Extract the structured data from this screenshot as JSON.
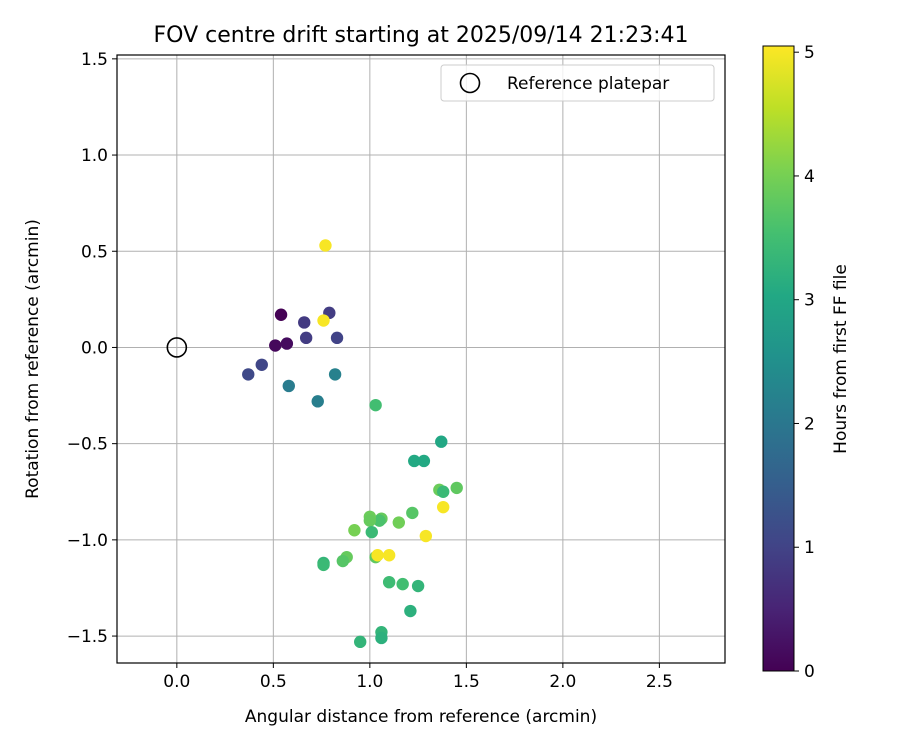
{
  "chart_data": {
    "type": "scatter",
    "title": "FOV centre drift starting at 2025/09/14 21:23:41",
    "xlabel": "Angular distance from reference (arcmin)",
    "ylabel": "Rotation from reference (arcmin)",
    "xlim": [
      -0.31,
      2.84
    ],
    "ylim": [
      -1.64,
      1.52
    ],
    "xticks": [
      0.0,
      0.5,
      1.0,
      1.5,
      2.0,
      2.5
    ],
    "xtick_labels": [
      "0.0",
      "0.5",
      "1.0",
      "1.5",
      "2.0",
      "2.5"
    ],
    "yticks": [
      -1.5,
      -1.0,
      -0.5,
      0.0,
      0.5,
      1.0,
      1.5
    ],
    "ytick_labels": [
      "−1.5",
      "−1.0",
      "−0.5",
      "0.0",
      "0.5",
      "1.0",
      "1.5"
    ],
    "grid": true,
    "legend": {
      "position": "top-right",
      "entries": [
        {
          "label": "Reference platepar",
          "marker": "open-circle"
        }
      ]
    },
    "reference_point": {
      "x": 0.0,
      "y": 0.0
    },
    "colorbar": {
      "label": "Hours from first FF file",
      "range": [
        0,
        5.05
      ],
      "ticks": [
        0,
        1,
        2,
        3,
        4,
        5
      ],
      "tick_labels": [
        "0",
        "1",
        "2",
        "3",
        "4",
        "5"
      ],
      "colormap": "viridis"
    },
    "points": [
      {
        "x": 0.54,
        "y": 0.17,
        "hours": 0.0
      },
      {
        "x": 0.51,
        "y": 0.01,
        "hours": 0.1
      },
      {
        "x": 0.57,
        "y": 0.02,
        "hours": 0.15
      },
      {
        "x": 0.79,
        "y": 0.18,
        "hours": 0.9
      },
      {
        "x": 0.66,
        "y": 0.13,
        "hours": 0.85
      },
      {
        "x": 0.67,
        "y": 0.05,
        "hours": 0.9
      },
      {
        "x": 0.83,
        "y": 0.05,
        "hours": 1.0
      },
      {
        "x": 0.44,
        "y": -0.09,
        "hours": 1.05
      },
      {
        "x": 0.37,
        "y": -0.14,
        "hours": 1.1
      },
      {
        "x": 0.58,
        "y": -0.2,
        "hours": 2.1
      },
      {
        "x": 0.73,
        "y": -0.28,
        "hours": 2.15
      },
      {
        "x": 0.82,
        "y": -0.14,
        "hours": 2.2
      },
      {
        "x": 1.03,
        "y": -0.3,
        "hours": 3.5
      },
      {
        "x": 1.37,
        "y": -0.49,
        "hours": 3.0
      },
      {
        "x": 1.23,
        "y": -0.59,
        "hours": 3.05
      },
      {
        "x": 1.28,
        "y": -0.59,
        "hours": 3.05
      },
      {
        "x": 1.36,
        "y": -0.74,
        "hours": 3.9
      },
      {
        "x": 1.38,
        "y": -0.75,
        "hours": 3.4
      },
      {
        "x": 1.45,
        "y": -0.73,
        "hours": 3.8
      },
      {
        "x": 1.22,
        "y": -0.86,
        "hours": 3.7
      },
      {
        "x": 1.06,
        "y": -0.89,
        "hours": 3.85
      },
      {
        "x": 1.05,
        "y": -0.9,
        "hours": 3.6
      },
      {
        "x": 1.15,
        "y": -0.91,
        "hours": 3.95
      },
      {
        "x": 1.0,
        "y": -0.88,
        "hours": 3.9
      },
      {
        "x": 1.0,
        "y": -0.9,
        "hours": 3.85
      },
      {
        "x": 0.92,
        "y": -0.95,
        "hours": 4.0
      },
      {
        "x": 1.01,
        "y": -0.96,
        "hours": 3.4
      },
      {
        "x": 1.03,
        "y": -1.09,
        "hours": 3.8
      },
      {
        "x": 0.88,
        "y": -1.09,
        "hours": 3.85
      },
      {
        "x": 0.86,
        "y": -1.11,
        "hours": 3.7
      },
      {
        "x": 0.76,
        "y": -1.12,
        "hours": 3.3
      },
      {
        "x": 0.76,
        "y": -1.13,
        "hours": 3.4
      },
      {
        "x": 1.1,
        "y": -1.22,
        "hours": 3.45
      },
      {
        "x": 1.17,
        "y": -1.23,
        "hours": 3.5
      },
      {
        "x": 1.25,
        "y": -1.24,
        "hours": 3.3
      },
      {
        "x": 1.21,
        "y": -1.37,
        "hours": 3.2
      },
      {
        "x": 1.06,
        "y": -1.48,
        "hours": 3.3
      },
      {
        "x": 1.06,
        "y": -1.51,
        "hours": 3.2
      },
      {
        "x": 0.95,
        "y": -1.53,
        "hours": 3.3
      },
      {
        "x": 0.77,
        "y": 0.53,
        "hours": 5.0
      },
      {
        "x": 0.76,
        "y": 0.14,
        "hours": 5.0
      },
      {
        "x": 1.38,
        "y": -0.83,
        "hours": 5.0
      },
      {
        "x": 1.29,
        "y": -0.98,
        "hours": 5.0
      },
      {
        "x": 1.04,
        "y": -1.08,
        "hours": 5.0
      },
      {
        "x": 1.1,
        "y": -1.08,
        "hours": 5.0
      }
    ]
  }
}
